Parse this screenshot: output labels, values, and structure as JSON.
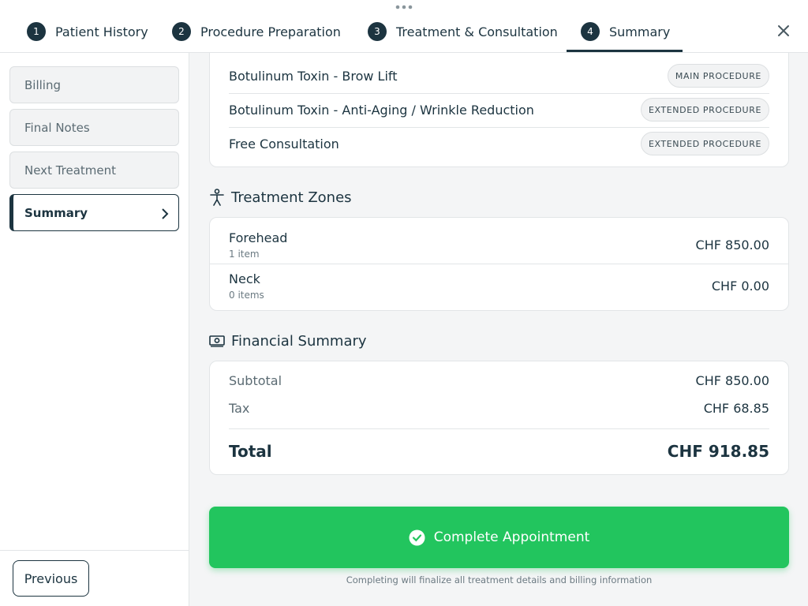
{
  "tabs": [
    {
      "number": 1,
      "label": "Patient History"
    },
    {
      "number": 2,
      "label": "Procedure Preparation"
    },
    {
      "number": 3,
      "label": "Treatment & Consultation"
    },
    {
      "number": 4,
      "label": "Summary"
    }
  ],
  "sidebar": {
    "items": [
      "Billing",
      "Final Notes",
      "Next Treatment",
      "Summary"
    ],
    "previous": "Previous"
  },
  "procedures": [
    {
      "name": "Botulinum Toxin - Brow Lift",
      "badge": "MAIN PROCEDURE"
    },
    {
      "name": "Botulinum Toxin - Anti-Aging / Wrinkle Reduction",
      "badge": "EXTENDED PROCEDURE"
    },
    {
      "name": "Free Consultation",
      "badge": "EXTENDED PROCEDURE"
    }
  ],
  "zones": {
    "title": "Treatment Zones",
    "items": [
      {
        "name": "Forehead",
        "count": "1 item",
        "amount": "CHF 850.00"
      },
      {
        "name": "Neck",
        "count": "0 items",
        "amount": "CHF 0.00"
      }
    ]
  },
  "financial": {
    "title": "Financial Summary",
    "rows": [
      {
        "label": "Subtotal",
        "amount": "CHF 850.00"
      },
      {
        "label": "Tax",
        "amount": "CHF 68.85"
      }
    ],
    "total": {
      "label": "Total",
      "amount": "CHF 918.85"
    }
  },
  "action": {
    "button": "Complete Appointment",
    "note": "Completing will finalize all treatment details and billing information"
  }
}
